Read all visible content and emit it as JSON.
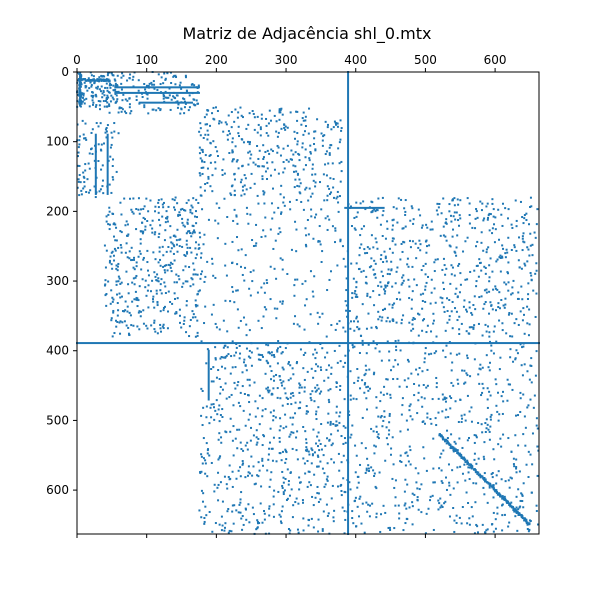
{
  "chart_data": {
    "type": "scatter",
    "title": "Matriz de Adjacência shl_0.mtx",
    "xlabel": "",
    "ylabel": "",
    "xlim": [
      0,
      663
    ],
    "ylim": [
      663,
      0
    ],
    "x_ticks": [
      0,
      100,
      200,
      300,
      400,
      500,
      600
    ],
    "y_ticks": [
      0,
      100,
      200,
      300,
      400,
      500,
      600
    ],
    "x_tick_labels": [
      "0",
      "100",
      "200",
      "300",
      "400",
      "500",
      "600"
    ],
    "y_tick_labels": [
      "0",
      "100",
      "200",
      "300",
      "400",
      "500",
      "600"
    ],
    "x_axis_position": "top",
    "grid": false,
    "legend": "none",
    "marker_color": "#1f77b4",
    "matrix_size": 663,
    "structure": {
      "dense_row": 389,
      "dense_column": 389,
      "diagonal_band": [
        [
          520,
          520
        ],
        [
          650,
          650
        ]
      ],
      "row_segments": [
        {
          "row": 22,
          "cols": [
            55,
            175
          ]
        },
        {
          "row": 30,
          "cols": [
            55,
            175
          ]
        },
        {
          "row": 44,
          "cols": [
            90,
            165
          ]
        },
        {
          "row": 195,
          "cols": [
            385,
            440
          ]
        }
      ],
      "col_segments": [
        {
          "col": 27,
          "rows": [
            90,
            175
          ]
        },
        {
          "col": 44,
          "rows": [
            90,
            175
          ]
        },
        {
          "col": 189,
          "rows": [
            400,
            470
          ]
        }
      ],
      "blocks": [
        {
          "rows": [
            0,
            50
          ],
          "cols": [
            0,
            60
          ],
          "density": 0.04
        },
        {
          "rows": [
            50,
            180
          ],
          "cols": [
            0,
            60
          ],
          "density": 0.012
        },
        {
          "rows": [
            0,
            60
          ],
          "cols": [
            40,
            175
          ],
          "density": 0.02
        },
        {
          "rows": [
            50,
            180
          ],
          "cols": [
            175,
            380
          ],
          "density": 0.013
        },
        {
          "rows": [
            180,
            380
          ],
          "cols": [
            40,
            175
          ],
          "density": 0.016
        },
        {
          "rows": [
            180,
            380
          ],
          "cols": [
            175,
            385
          ],
          "density": 0.005
        },
        {
          "rows": [
            180,
            380
          ],
          "cols": [
            385,
            663
          ],
          "density": 0.011
        },
        {
          "rows": [
            385,
            663
          ],
          "cols": [
            175,
            385
          ],
          "density": 0.011
        },
        {
          "rows": [
            385,
            663
          ],
          "cols": [
            385,
            663
          ],
          "density": 0.008
        }
      ]
    }
  }
}
